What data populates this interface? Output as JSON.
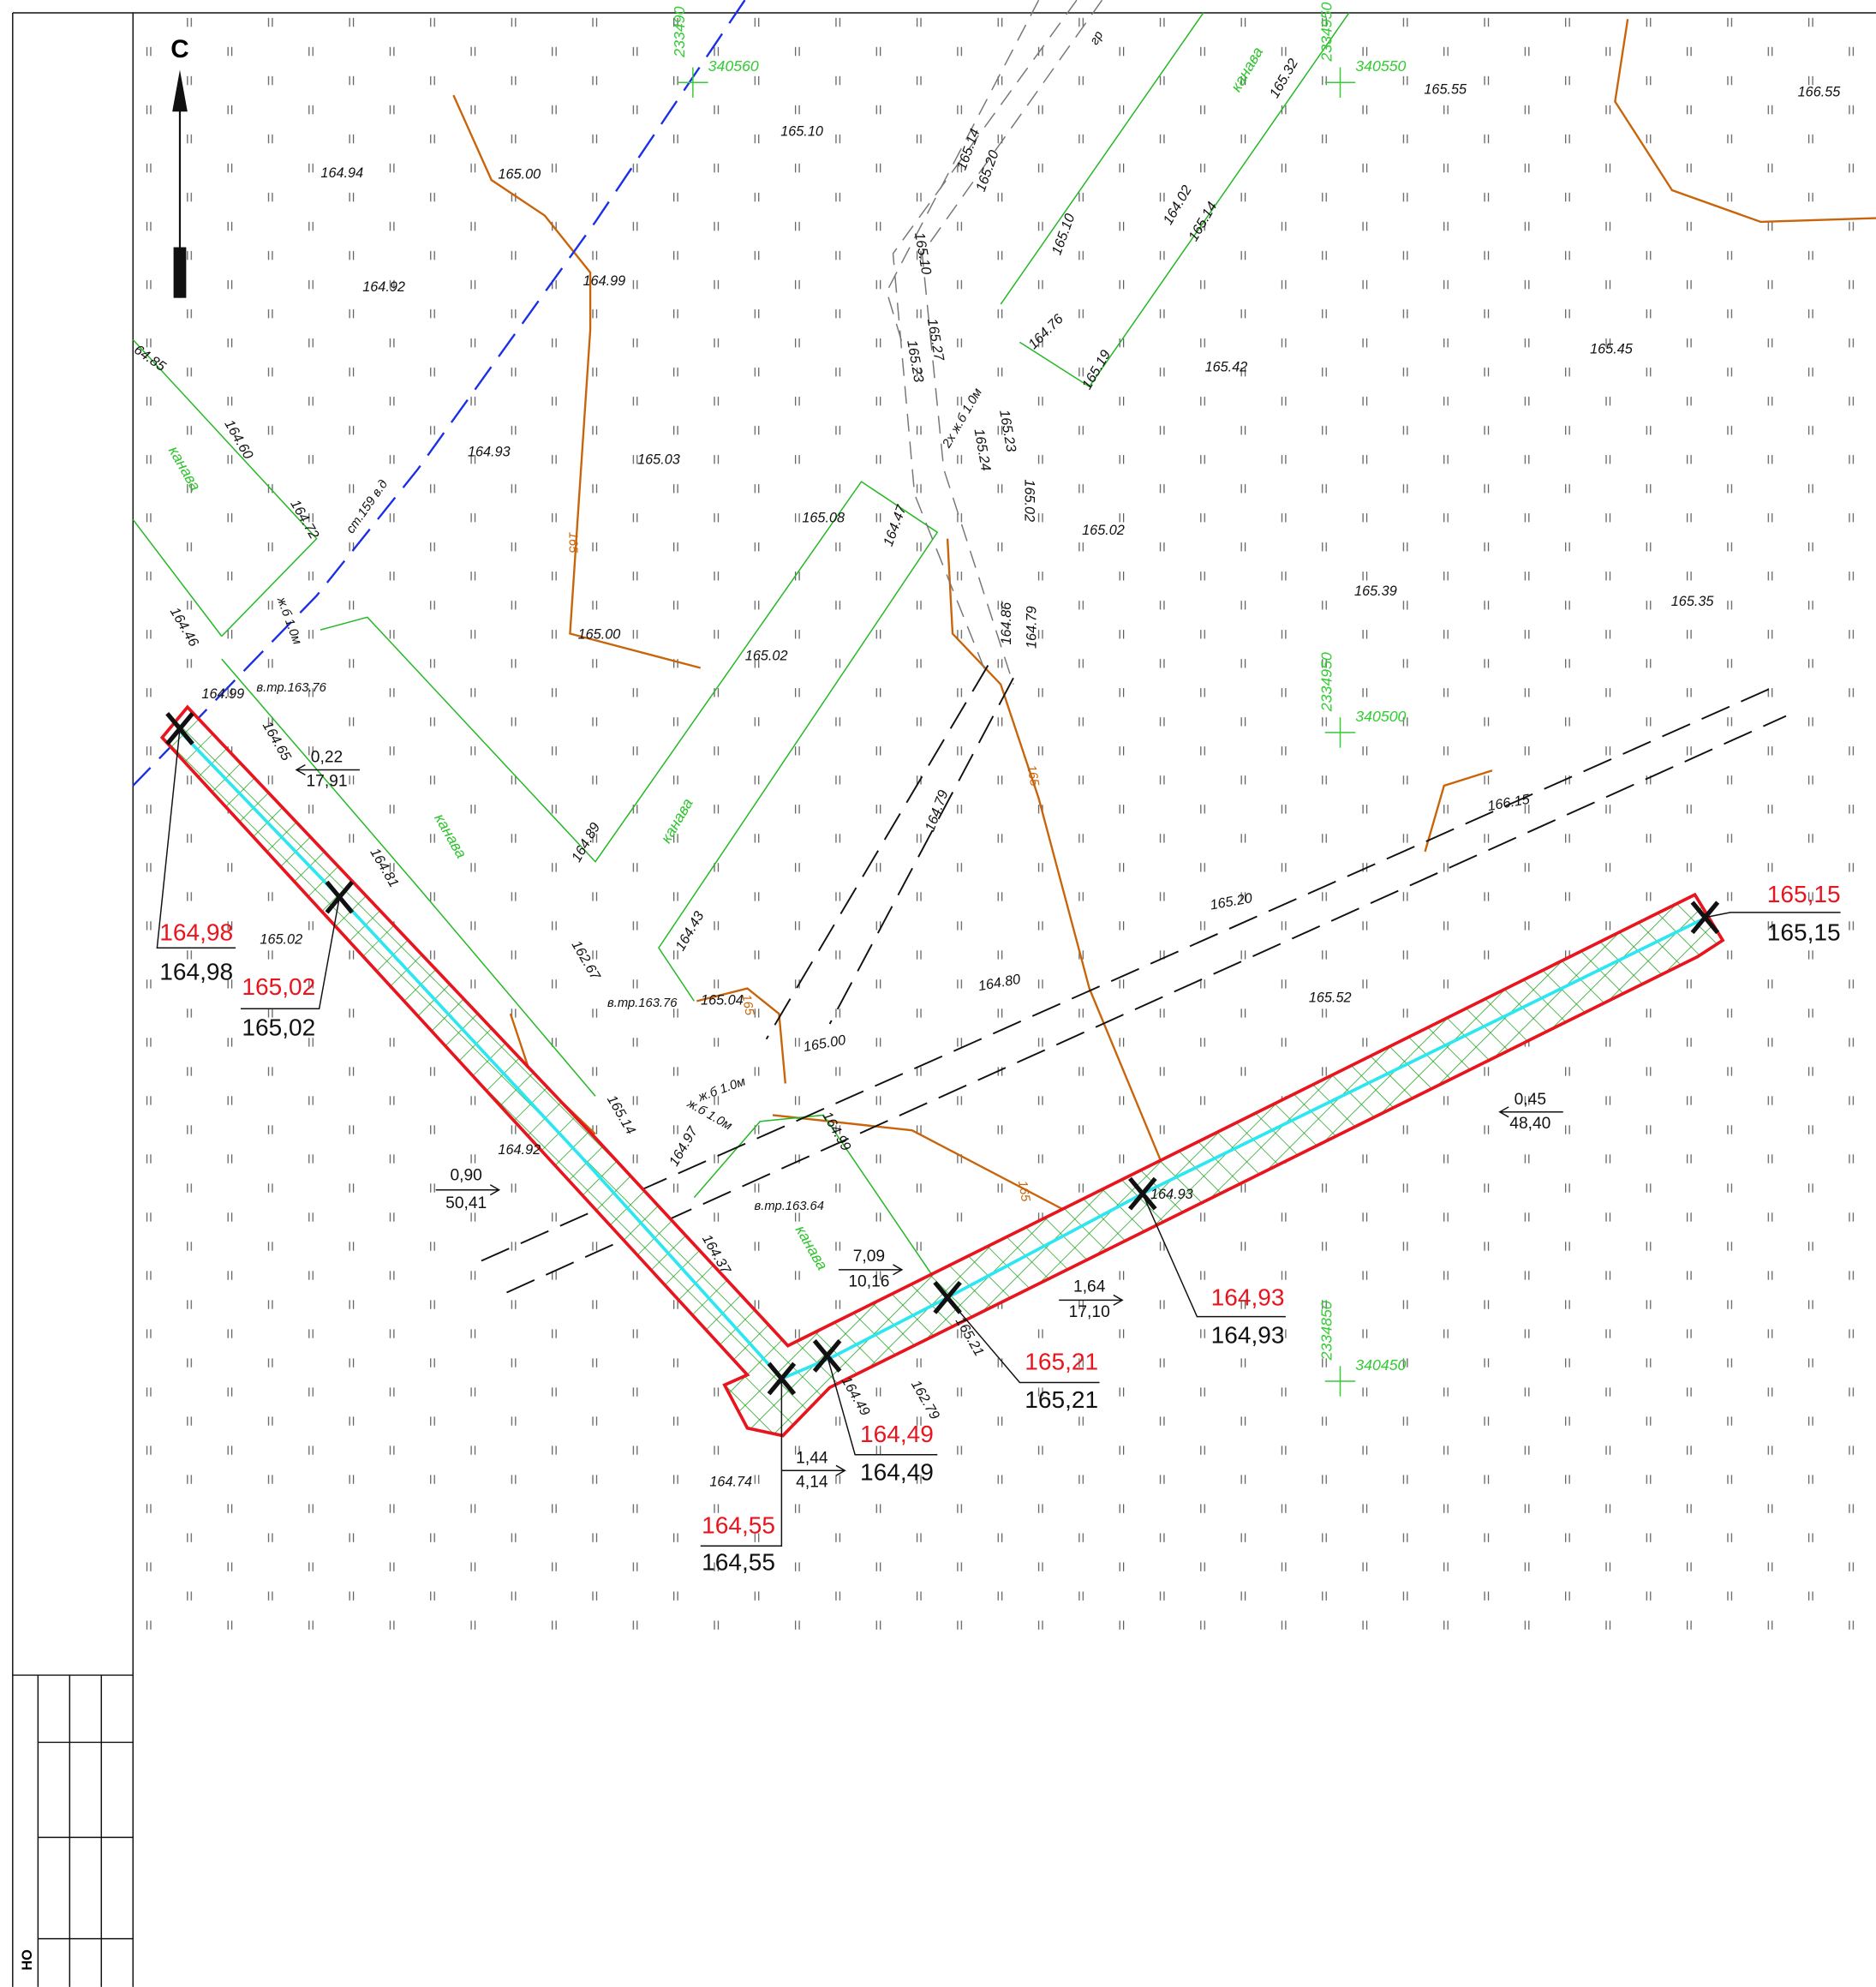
{
  "north": "С",
  "grades": [
    "164.94",
    "165.00",
    "165.10",
    "164.92",
    "164.99",
    "64.85",
    "164.60",
    "164.93",
    "165.03",
    "165.08",
    "164.72",
    "164.46",
    "165.00",
    "165.02",
    "164.99",
    "164.65",
    "164.81",
    "164.89",
    "164.43",
    "165.02",
    "162.67",
    "165.04",
    "165.00",
    "165.14",
    "164.92",
    "164.97",
    "164.99",
    "164.37",
    "165.21",
    "164.49",
    "162.79",
    "164.74",
    "164.93",
    "165.52",
    "165.20",
    "164.80",
    "166.15",
    "165.39",
    "165.35",
    "165.45",
    "165.42",
    "165.02",
    "165.55",
    "166.55",
    "165.14",
    "165.20",
    "165.10",
    "165.27",
    "165.23",
    "165.23",
    "165.24",
    "165.02",
    "164.86",
    "164.79",
    "164.76",
    "165.10",
    "164.02",
    "165.14",
    "165.19",
    "165.32",
    "164.47",
    "164.79"
  ],
  "contour_labels": [
    "165",
    "165",
    "165",
    "165"
  ],
  "ditch_labels": [
    "канава",
    "канава",
    "канава",
    "канава",
    "канава"
  ],
  "pipe_labels": [
    "ст.159 в.д",
    "в.тр.163.76",
    "в.тр.163.76",
    "в.тр.163.64",
    "2х ж.б 1.0м",
    "ж.б 1.0м",
    "ж.б 1.0м",
    "ж.б 1.0м",
    "гр"
  ],
  "design_marks": [
    {
      "design": "164,98",
      "existing": "164,98"
    },
    {
      "design": "165,02",
      "existing": "165,02"
    },
    {
      "design": "164,93",
      "existing": "164,93"
    },
    {
      "design": "165,21",
      "existing": "165,21"
    },
    {
      "design": "164,49",
      "existing": "164,49"
    },
    {
      "design": "164,55",
      "existing": "164,55"
    },
    {
      "design": "165,15",
      "existing": "165,15"
    }
  ],
  "slopes": [
    {
      "slope": "0,22",
      "length": "17,91"
    },
    {
      "slope": "0,90",
      "length": "50,41"
    },
    {
      "slope": "7,09",
      "length": "10,16"
    },
    {
      "slope": "1,64",
      "length": "17,10"
    },
    {
      "slope": "1,44",
      "length": "4,14"
    },
    {
      "slope": "0,45",
      "length": "48,40"
    }
  ],
  "coordinates": [
    {
      "north": "233490",
      "east": "340560"
    },
    {
      "north": "2334950",
      "east": "340550"
    },
    {
      "north": "2334950",
      "east": "340500"
    },
    {
      "north": "2334850",
      "east": "340450"
    }
  ],
  "stamp": "НО"
}
